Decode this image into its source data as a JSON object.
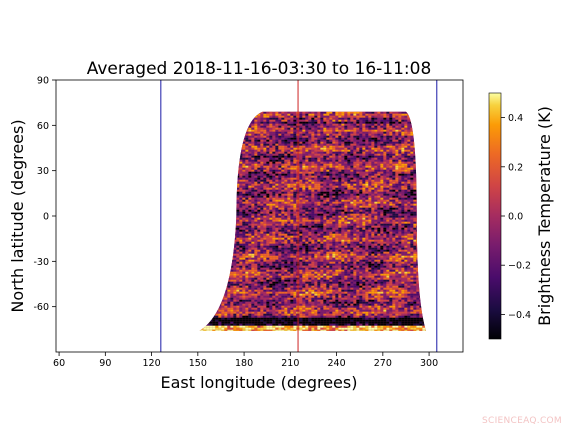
{
  "chart_data": {
    "type": "heatmap",
    "title": "Averaged 2018-11-16-03:30 to 16-11:08",
    "xlabel": "East longitude (degrees)",
    "ylabel": "North latitude (degrees)",
    "xlim": [
      58,
      322
    ],
    "ylim": [
      -90,
      90
    ],
    "xticks": [
      60,
      90,
      120,
      150,
      180,
      210,
      240,
      270,
      300
    ],
    "yticks": [
      -60,
      -30,
      0,
      30,
      60,
      90
    ],
    "vertical_lines": [
      {
        "x": 126,
        "color": "#1a1aa6"
      },
      {
        "x": 215,
        "color": "#cc2222"
      },
      {
        "x": 305,
        "color": "#1a1aa6"
      }
    ],
    "data_region": {
      "lat_top": 69,
      "lat_bottom": -76,
      "lon_left_at_top": 192,
      "lon_right_at_top": 285,
      "lon_left_at_equator": 175,
      "lon_right_at_equator": 292,
      "lon_left_at_bottom": 151,
      "lon_right_at_bottom": 298
    },
    "colorbar": {
      "label": "Brightness Temperature (K)",
      "colormap": "inferno",
      "range": [
        -0.5,
        0.5
      ],
      "ticks": [
        -0.4,
        -0.2,
        0.0,
        0.2,
        0.4
      ],
      "tick_labels": [
        "−0.4",
        "−0.2",
        "0.0",
        "0.2",
        "0.4"
      ]
    }
  },
  "watermark": "SCIENCEAQ.COM"
}
